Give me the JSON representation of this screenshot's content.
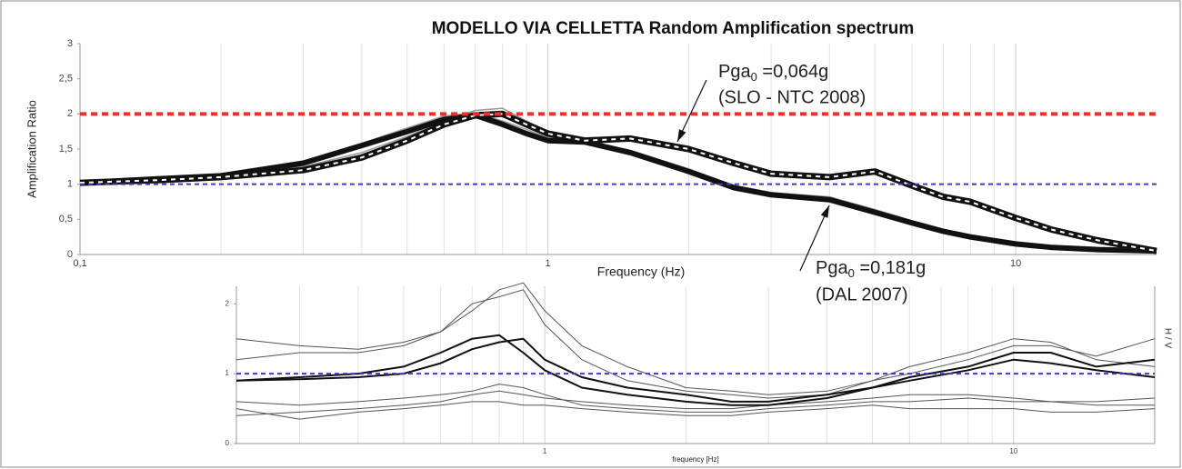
{
  "chart_data": [
    {
      "type": "line",
      "title": "MODELLO VIA CELLETTA Random Amplification spectrum",
      "x_label": "Frequency (Hz)",
      "y_label": "Amplification Ratio",
      "x_log": true,
      "grid": true,
      "minor_grid": true,
      "xlim": [
        0.1,
        20
      ],
      "ylim": [
        0,
        3
      ],
      "xticks": [
        {
          "value": 0.1,
          "label": "0,1"
        },
        1,
        10
      ],
      "yticks": [
        0,
        {
          "value": 0.5,
          "label": "0,5"
        },
        1,
        {
          "value": 1.5,
          "label": "1,5"
        },
        2,
        {
          "value": 2.5,
          "label": "2,5"
        },
        3
      ],
      "hlines": [
        {
          "value": 2,
          "color": "#e8322e"
        },
        {
          "value": 1,
          "color": "#3a3ad0"
        }
      ],
      "x": [
        0.1,
        0.15,
        0.2,
        0.3,
        0.4,
        0.5,
        0.6,
        0.7,
        0.8,
        0.9,
        1,
        1.2,
        1.5,
        2,
        2.5,
        3,
        4,
        5,
        6,
        7,
        8,
        10,
        12,
        15,
        20
      ],
      "series": [
        {
          "color": "#9a9a9a",
          "width": 1.5,
          "values": [
            1.02,
            1.07,
            1.11,
            1.25,
            1.45,
            1.68,
            1.9,
            2.05,
            2.08,
            1.9,
            1.75,
            1.66,
            1.68,
            1.52,
            1.32,
            1.18,
            1.12,
            1.22,
            1.02,
            0.86,
            0.78,
            0.55,
            0.38,
            0.22,
            0.07
          ]
        },
        {
          "color": "#9a9a9a",
          "width": 1.5,
          "values": [
            1.02,
            1.08,
            1.12,
            1.32,
            1.58,
            1.8,
            1.97,
            2.02,
            1.9,
            1.78,
            1.66,
            1.62,
            1.48,
            1.22,
            0.98,
            0.88,
            0.82,
            0.64,
            0.48,
            0.36,
            0.28,
            0.17,
            0.12,
            0.08,
            0.05
          ]
        },
        {
          "color": "#111111",
          "width": 6,
          "values": [
            1.02,
            1.08,
            1.12,
            1.3,
            1.55,
            1.75,
            1.92,
            1.98,
            1.85,
            1.72,
            1.62,
            1.6,
            1.45,
            1.18,
            0.95,
            0.85,
            0.78,
            0.6,
            0.45,
            0.33,
            0.25,
            0.15,
            0.1,
            0.07,
            0.05
          ]
        },
        {
          "color": "#111111",
          "width": 7,
          "dash": true,
          "values": [
            1.02,
            1.06,
            1.1,
            1.2,
            1.38,
            1.62,
            1.85,
            1.98,
            2.0,
            1.85,
            1.72,
            1.62,
            1.65,
            1.5,
            1.3,
            1.15,
            1.1,
            1.18,
            0.98,
            0.82,
            0.75,
            0.52,
            0.35,
            0.2,
            0.05
          ]
        }
      ],
      "annotations": [
        {
          "label": "Pga",
          "sub": "0",
          "rest": " =0,064g",
          "note": "(SLO - NTC 2008)"
        },
        {
          "label": "Pga",
          "sub": "0",
          "rest": " =0,181g",
          "note": "(DAL 2007)"
        }
      ]
    },
    {
      "type": "line",
      "x_label": "frequency [Hz]",
      "y2_label": "H / V",
      "x_log": true,
      "grid": true,
      "minor_grid": true,
      "xlim": [
        0.22,
        20
      ],
      "ylim": [
        0,
        2.25
      ],
      "xticks": [
        1,
        10
      ],
      "yticks": [
        0,
        1,
        2
      ],
      "hlines": [
        {
          "value": 1,
          "color": "#3a3ad0"
        }
      ],
      "x": [
        0.22,
        0.3,
        0.4,
        0.5,
        0.6,
        0.7,
        0.8,
        0.9,
        1,
        1.2,
        1.5,
        2,
        2.5,
        3,
        4,
        5,
        6,
        8,
        10,
        12,
        15,
        20
      ],
      "series": [
        {
          "color": "#555555",
          "width": 1,
          "values": [
            1.5,
            1.4,
            1.35,
            1.45,
            1.6,
            2.0,
            2.1,
            2.2,
            1.7,
            1.2,
            0.9,
            0.75,
            0.7,
            0.65,
            0.7,
            0.9,
            1.1,
            1.3,
            1.5,
            1.45,
            1.2,
            1.1
          ]
        },
        {
          "color": "#555555",
          "width": 1,
          "values": [
            1.2,
            1.3,
            1.3,
            1.4,
            1.6,
            1.9,
            2.2,
            2.3,
            1.9,
            1.4,
            1.1,
            0.8,
            0.75,
            0.7,
            0.75,
            0.9,
            1.0,
            1.2,
            1.4,
            1.4,
            1.25,
            1.5
          ]
        },
        {
          "color": "#555555",
          "width": 1,
          "values": [
            0.6,
            0.55,
            0.6,
            0.65,
            0.7,
            0.75,
            0.85,
            0.8,
            0.7,
            0.55,
            0.5,
            0.45,
            0.45,
            0.5,
            0.55,
            0.6,
            0.6,
            0.65,
            0.6,
            0.6,
            0.55,
            0.55
          ]
        },
        {
          "color": "#555555",
          "width": 1,
          "values": [
            0.5,
            0.35,
            0.45,
            0.5,
            0.55,
            0.6,
            0.6,
            0.55,
            0.55,
            0.5,
            0.45,
            0.4,
            0.4,
            0.45,
            0.5,
            0.55,
            0.5,
            0.5,
            0.5,
            0.45,
            0.45,
            0.5
          ]
        },
        {
          "color": "#555555",
          "width": 1,
          "values": [
            0.4,
            0.45,
            0.5,
            0.55,
            0.6,
            0.7,
            0.75,
            0.7,
            0.65,
            0.6,
            0.55,
            0.5,
            0.5,
            0.55,
            0.6,
            0.65,
            0.7,
            0.7,
            0.65,
            0.6,
            0.6,
            0.65
          ]
        },
        {
          "color": "#111111",
          "width": 2,
          "values": [
            0.9,
            0.95,
            1.0,
            1.1,
            1.3,
            1.5,
            1.55,
            1.3,
            1.05,
            0.8,
            0.7,
            0.6,
            0.55,
            0.55,
            0.65,
            0.8,
            0.9,
            1.05,
            1.2,
            1.15,
            1.05,
            0.95
          ]
        },
        {
          "color": "#111111",
          "width": 2,
          "values": [
            0.9,
            0.92,
            0.95,
            1.0,
            1.15,
            1.35,
            1.45,
            1.5,
            1.2,
            0.95,
            0.8,
            0.7,
            0.6,
            0.6,
            0.7,
            0.8,
            0.95,
            1.1,
            1.3,
            1.3,
            1.1,
            1.2
          ]
        }
      ]
    }
  ]
}
